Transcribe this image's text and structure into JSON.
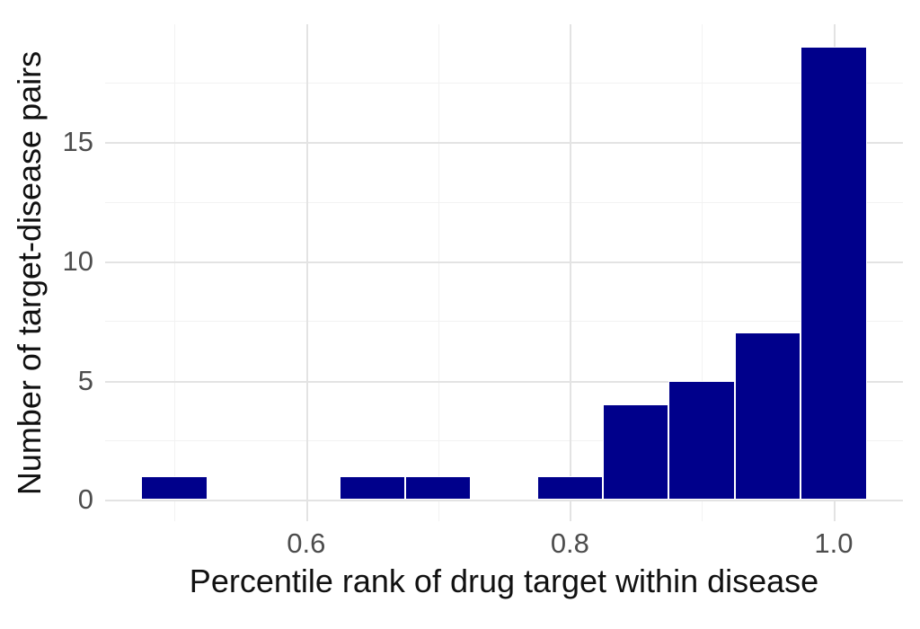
{
  "chart_data": {
    "type": "bar",
    "subtype": "histogram",
    "title": "",
    "xlabel": "Percentile rank of drug target within disease",
    "ylabel": "Number of target-disease pairs",
    "bin_width": 0.05,
    "bin_centers": [
      0.5,
      0.65,
      0.7,
      0.8,
      0.85,
      0.9,
      0.95,
      1.0
    ],
    "counts": [
      1,
      1,
      1,
      1,
      4,
      5,
      7,
      19
    ],
    "x_ticks": [
      0.6,
      0.8,
      1.0
    ],
    "x_tick_labels": [
      "0.6",
      "0.8",
      "1.0"
    ],
    "x_minor_ticks": [
      0.5,
      0.7,
      0.9
    ],
    "y_ticks": [
      0,
      5,
      10,
      15
    ],
    "y_tick_labels": [
      "0",
      "5",
      "10",
      "15"
    ],
    "y_minor_ticks": [
      2.5,
      7.5,
      12.5,
      17.5
    ],
    "xlim": [
      0.4475,
      1.0525
    ],
    "ylim": [
      -0.9,
      19.95
    ],
    "grid": true,
    "legend": "none",
    "colors": {
      "bar_fill": "#00008B",
      "bar_border": "#FFFFFF",
      "grid_major": "#E3E3E3",
      "grid_minor": "#F2F2F2",
      "tick_label": "#4D4D4D",
      "axis_title": "#111111",
      "background": "#FFFFFF"
    }
  }
}
